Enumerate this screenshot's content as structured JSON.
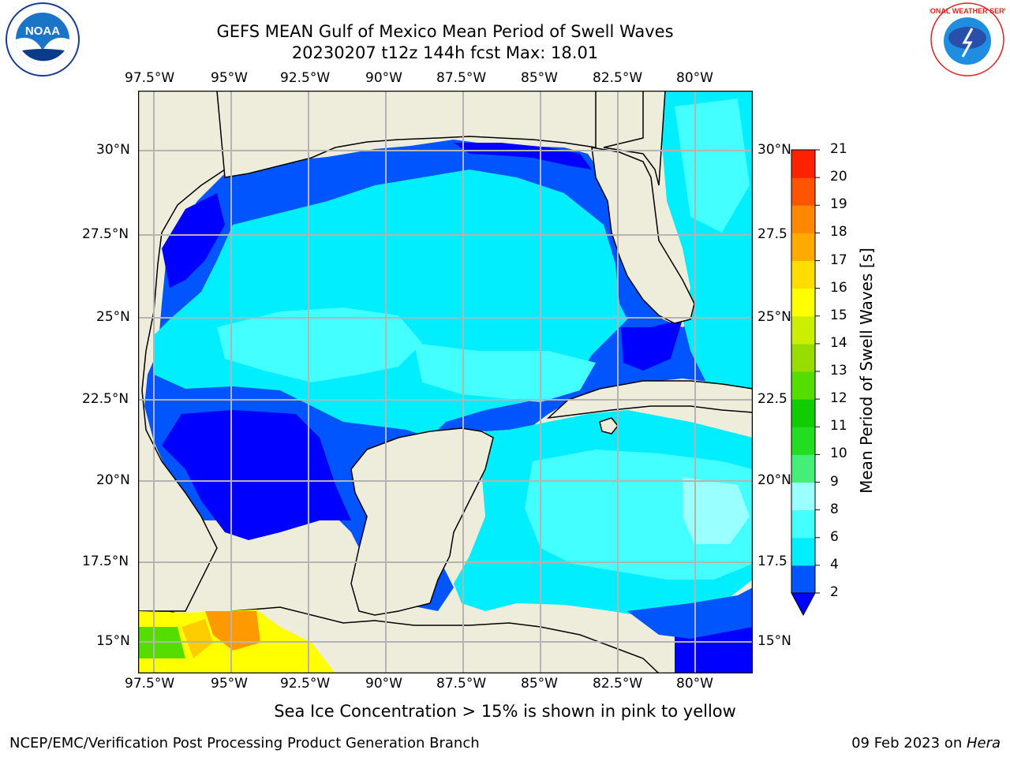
{
  "header": {
    "title_line1": "GEFS MEAN Gulf of Mexico Mean Period of Swell Waves",
    "title_line2": "20230207 t12z 144h fcst   Max: 18.01"
  },
  "logos": {
    "left": {
      "icon": "noaa-logo",
      "text": "NOAA"
    },
    "right": {
      "icon": "nws-logo",
      "text": "NATIONAL WEATHER SERVICE"
    }
  },
  "map": {
    "lon_labels": [
      "97.5°W",
      "95°W",
      "92.5°W",
      "90°W",
      "87.5°W",
      "85°W",
      "82.5°W",
      "80°W"
    ],
    "lat_labels_left": [
      "30°N",
      "27.5°N",
      "25°N",
      "22.5°N",
      "20°N",
      "17.5°N",
      "15°N"
    ],
    "lat_labels_right": [
      "30°N",
      "27.5",
      "25°N",
      "22.5",
      "20°N",
      "17.5",
      "15°N"
    ],
    "land_color": "#eeeddc",
    "grid_color": "#b4b4b4"
  },
  "colorbar": {
    "label": "Mean Period of Swell Waves [s]",
    "ticks": [
      "2",
      "4",
      "6",
      "8",
      "9",
      "10",
      "11",
      "12",
      "13",
      "14",
      "15",
      "16",
      "17",
      "18",
      "19",
      "20",
      "21"
    ],
    "colors": [
      "#0055ff",
      "#00eeff",
      "#44ffff",
      "#99ffff",
      "#44ee77",
      "#22dd22",
      "#11cc00",
      "#55dd00",
      "#99dd00",
      "#ccee00",
      "#ffff00",
      "#ffdd00",
      "#ffaa00",
      "#ff8800",
      "#ff5500",
      "#ff2200",
      "#ff0000"
    ],
    "under_color": "#0000ff"
  },
  "caption": "Sea Ice Concentration > 15% is shown in pink to yellow",
  "footer": {
    "left": "NCEP/EMC/Verification Post Processing Product Generation Branch",
    "date_prefix": "09 Feb 2023 on ",
    "host": "Hera"
  }
}
